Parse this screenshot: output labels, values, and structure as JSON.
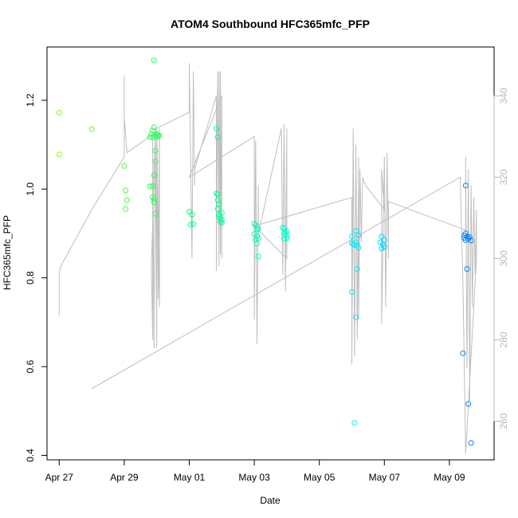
{
  "chart_data": {
    "type": "scatter",
    "title": "ATOM4 Southbound HFC365mfc_PFP",
    "xlabel": "Date",
    "ylabel": "HFC365mfc_PFP",
    "xlim": [
      "2016-04-26T15:00",
      "2016-05-10T09:00"
    ],
    "ylim": [
      0.39,
      1.32
    ],
    "y2lim": [
      250.5,
      352
    ],
    "x_ticks": [
      {
        "date": "2016-04-27",
        "label": "Apr 27"
      },
      {
        "date": "2016-04-29",
        "label": "Apr 29"
      },
      {
        "date": "2016-05-01",
        "label": "May 01"
      },
      {
        "date": "2016-05-03",
        "label": "May 03"
      },
      {
        "date": "2016-05-05",
        "label": "May 05"
      },
      {
        "date": "2016-05-07",
        "label": "May 07"
      },
      {
        "date": "2016-05-09",
        "label": "May 09"
      }
    ],
    "y_ticks": [
      0.4,
      0.6,
      0.8,
      1.0,
      1.2
    ],
    "y_tick_labels": [
      "0.4",
      "0.6",
      "0.8",
      "1.0",
      "1.2"
    ],
    "y2_ticks": [
      260,
      280,
      300,
      320,
      340
    ],
    "y2_tick_labels": [
      "260",
      "280",
      "300",
      "320",
      "340"
    ],
    "grid": false,
    "legend": "none",
    "colors": {
      "line": "#bebebe",
      "frame": "#000000",
      "right_axis": "#b8b8b8",
      "point_gradient": [
        "#80ff00",
        "#00ff80",
        "#00ffff",
        "#0080ff"
      ]
    },
    "series": [
      {
        "type": "line",
        "axis": "right",
        "points": [
          [
            "2016-04-27T00:00",
            286
          ],
          [
            "2016-04-27T00:00",
            296
          ],
          [
            "2016-04-27T01:00",
            298
          ],
          [
            "2016-04-28T00:00",
            312
          ],
          [
            "2016-04-29T00:00",
            325
          ],
          [
            "2016-04-29T00:00",
            345
          ],
          [
            "2016-04-29T00:00",
            335
          ],
          [
            "2016-04-29T02:00",
            326
          ],
          [
            "2016-04-29T23:00",
            331
          ],
          [
            "2016-04-29T20:00",
            298
          ],
          [
            "2016-04-29T21:00",
            280
          ],
          [
            "2016-04-29T21:00",
            330
          ],
          [
            "2016-04-29T22:00",
            278
          ],
          [
            "2016-04-29T23:00",
            332
          ],
          [
            "2016-04-30T00:00",
            278
          ],
          [
            "2016-04-30T00:00",
            330
          ],
          [
            "2016-04-30T01:00",
            290
          ],
          [
            "2016-04-30T02:00",
            332
          ],
          [
            "2016-04-30T02:00",
            288
          ],
          [
            "2016-04-30T00:00",
            332
          ],
          [
            "2016-05-01T00:00",
            336
          ],
          [
            "2016-05-01T00:00",
            348
          ],
          [
            "2016-05-01T02:00",
            300
          ],
          [
            "2016-05-01T03:00",
            346
          ],
          [
            "2016-05-01T04:00",
            318
          ],
          [
            "2016-05-01T04:00",
            322
          ],
          [
            "2016-05-01T20:00",
            340
          ],
          [
            "2016-05-01T20:00",
            297
          ],
          [
            "2016-05-01T21:00",
            346
          ],
          [
            "2016-05-01T22:00",
            298
          ],
          [
            "2016-05-01T22:00",
            346
          ],
          [
            "2016-05-01T23:00",
            301
          ],
          [
            "2016-05-01T23:00",
            346
          ],
          [
            "2016-05-02T00:00",
            300
          ],
          [
            "2016-05-02T00:00",
            340
          ],
          [
            "2016-05-01T00:00",
            320
          ],
          [
            "2016-05-03T00:00",
            330
          ],
          [
            "2016-05-03T00:00",
            285
          ],
          [
            "2016-05-03T01:00",
            329
          ],
          [
            "2016-05-03T02:00",
            279
          ],
          [
            "2016-05-03T03:00",
            318
          ],
          [
            "2016-05-03T03:00",
            306
          ],
          [
            "2016-05-03T20:00",
            332
          ],
          [
            "2016-05-03T21:00",
            296
          ],
          [
            "2016-05-03T22:00",
            333
          ],
          [
            "2016-05-03T23:00",
            292
          ],
          [
            "2016-05-04T00:00",
            332
          ],
          [
            "2016-05-04T00:00",
            300
          ],
          [
            "2016-05-03T00:00",
            308
          ],
          [
            "2016-05-06T00:00",
            315
          ],
          [
            "2016-05-06T00:00",
            274
          ],
          [
            "2016-05-06T01:00",
            332
          ],
          [
            "2016-05-06T02:00",
            276
          ],
          [
            "2016-05-06T03:00",
            328
          ],
          [
            "2016-05-06T04:00",
            280
          ],
          [
            "2016-05-06T05:00",
            325
          ],
          [
            "2016-05-06T05:00",
            285
          ],
          [
            "2016-05-06T06:00",
            322
          ],
          [
            "2016-05-06T07:00",
            304
          ],
          [
            "2016-05-06T08:00",
            320
          ],
          [
            "2016-05-06T10:00",
            318
          ],
          [
            "2016-05-07T00:00",
            312
          ],
          [
            "2016-05-06T22:00",
            322
          ],
          [
            "2016-05-06T22:00",
            284
          ],
          [
            "2016-05-07T00:00",
            325
          ],
          [
            "2016-05-07T01:00",
            288
          ],
          [
            "2016-05-07T02:00",
            326
          ],
          [
            "2016-05-07T03:00",
            300
          ],
          [
            "2016-05-07T03:00",
            314
          ],
          [
            "2016-05-09T12:00",
            307
          ],
          [
            "2016-05-09T12:00",
            325
          ],
          [
            "2016-05-09T13:00",
            273
          ],
          [
            "2016-05-09T14:00",
            322
          ],
          [
            "2016-05-09T15:00",
            265
          ],
          [
            "2016-05-09T16:00",
            318
          ],
          [
            "2016-05-09T17:00",
            288
          ],
          [
            "2016-05-09T18:00",
            315
          ],
          [
            "2016-05-09T19:00",
            296
          ],
          [
            "2016-05-09T20:00",
            312
          ],
          [
            "2016-05-09T20:00",
            300
          ],
          [
            "2016-05-09T12:00",
            252
          ],
          [
            "2016-05-09T10:00",
            294
          ],
          [
            "2016-05-09T08:00",
            320
          ],
          [
            "2016-04-28T00:00",
            268
          ]
        ]
      },
      {
        "type": "points",
        "axis": "left",
        "marker": "open-circle",
        "points": [
          [
            "2016-04-27T00:00",
            1.172
          ],
          [
            "2016-04-27T00:00",
            1.078
          ],
          [
            "2016-04-28T00:00",
            1.135
          ],
          [
            "2016-04-29T00:00",
            1.052
          ],
          [
            "2016-04-29T01:00",
            0.997
          ],
          [
            "2016-04-29T02:00",
            0.975
          ],
          [
            "2016-04-29T01:00",
            0.955
          ],
          [
            "2016-04-29T19:00",
            1.117
          ],
          [
            "2016-04-29T20:00",
            1.124
          ],
          [
            "2016-04-29T21:00",
            1.132
          ],
          [
            "2016-04-29T21:00",
            1.117
          ],
          [
            "2016-04-29T22:00",
            1.139
          ],
          [
            "2016-04-29T23:00",
            1.12
          ],
          [
            "2016-04-30T00:00",
            1.124
          ],
          [
            "2016-04-30T00:00",
            1.117
          ],
          [
            "2016-04-30T01:00",
            1.121
          ],
          [
            "2016-04-30T02:00",
            1.12
          ],
          [
            "2016-04-29T22:00",
            1.29
          ],
          [
            "2016-04-29T23:00",
            1.086
          ],
          [
            "2016-04-29T23:00",
            1.062
          ],
          [
            "2016-04-29T22:00",
            1.031
          ],
          [
            "2016-04-29T19:00",
            1.006
          ],
          [
            "2016-04-29T21:00",
            1.007
          ],
          [
            "2016-04-29T21:00",
            0.982
          ],
          [
            "2016-04-29T22:00",
            0.977
          ],
          [
            "2016-04-29T22:00",
            0.97
          ],
          [
            "2016-04-29T23:00",
            0.944
          ],
          [
            "2016-05-01T00:00",
            0.949
          ],
          [
            "2016-05-01T02:00",
            0.942
          ],
          [
            "2016-05-01T01:00",
            0.92
          ],
          [
            "2016-05-01T03:00",
            0.921
          ],
          [
            "2016-05-01T20:00",
            1.136
          ],
          [
            "2016-05-01T21:00",
            1.117
          ],
          [
            "2016-05-01T20:00",
            0.99
          ],
          [
            "2016-05-01T21:00",
            0.988
          ],
          [
            "2016-05-01T21:00",
            0.975
          ],
          [
            "2016-05-01T22:00",
            0.966
          ],
          [
            "2016-05-01T21:00",
            0.955
          ],
          [
            "2016-05-01T22:00",
            0.943
          ],
          [
            "2016-05-02T00:00",
            0.946
          ],
          [
            "2016-05-01T22:00",
            0.938
          ],
          [
            "2016-05-01T23:00",
            0.934
          ],
          [
            "2016-05-02T00:00",
            0.931
          ],
          [
            "2016-05-01T23:00",
            0.927
          ],
          [
            "2016-05-02T00:00",
            0.924
          ],
          [
            "2016-05-03T00:00",
            0.922
          ],
          [
            "2016-05-03T01:00",
            0.918
          ],
          [
            "2016-05-03T02:00",
            0.911
          ],
          [
            "2016-05-03T03:00",
            0.91
          ],
          [
            "2016-05-03T00:00",
            0.899
          ],
          [
            "2016-05-03T02:00",
            0.894
          ],
          [
            "2016-05-03T01:00",
            0.886
          ],
          [
            "2016-05-03T03:00",
            0.889
          ],
          [
            "2016-05-03T02:00",
            0.877
          ],
          [
            "2016-05-03T03:00",
            0.848
          ],
          [
            "2016-05-03T21:00",
            0.913
          ],
          [
            "2016-05-03T22:00",
            0.91
          ],
          [
            "2016-05-04T00:00",
            0.905
          ],
          [
            "2016-05-03T22:00",
            0.899
          ],
          [
            "2016-05-03T23:00",
            0.902
          ],
          [
            "2016-05-04T00:00",
            0.896
          ],
          [
            "2016-05-03T22:00",
            0.888
          ],
          [
            "2016-05-04T00:00",
            0.889
          ],
          [
            "2016-05-06T00:00",
            0.893
          ],
          [
            "2016-05-06T03:00",
            0.906
          ],
          [
            "2016-05-06T05:00",
            0.896
          ],
          [
            "2016-05-06T00:00",
            0.878
          ],
          [
            "2016-05-06T02:00",
            0.874
          ],
          [
            "2016-05-06T03:00",
            0.88
          ],
          [
            "2016-05-06T04:00",
            0.873
          ],
          [
            "2016-05-06T05:00",
            0.868
          ],
          [
            "2016-05-06T01:00",
            0.876
          ],
          [
            "2016-05-06T04:00",
            0.82
          ],
          [
            "2016-05-06T00:00",
            0.768
          ],
          [
            "2016-05-06T03:00",
            0.711
          ],
          [
            "2016-05-06T02:00",
            0.473
          ],
          [
            "2016-05-06T21:00",
            0.88
          ],
          [
            "2016-05-06T22:00",
            0.893
          ],
          [
            "2016-05-07T00:00",
            0.885
          ],
          [
            "2016-05-06T23:00",
            0.876
          ],
          [
            "2016-05-07T00:00",
            0.87
          ],
          [
            "2016-05-06T22:00",
            0.866
          ],
          [
            "2016-05-09T12:00",
            1.008
          ],
          [
            "2016-05-09T11:00",
            0.896
          ],
          [
            "2016-05-09T12:00",
            0.9
          ],
          [
            "2016-05-09T13:00",
            0.893
          ],
          [
            "2016-05-09T14:00",
            0.888
          ],
          [
            "2016-05-09T15:00",
            0.892
          ],
          [
            "2016-05-09T16:00",
            0.884
          ],
          [
            "2016-05-09T12:00",
            0.885
          ],
          [
            "2016-05-09T11:00",
            0.89
          ],
          [
            "2016-05-09T13:00",
            0.82
          ],
          [
            "2016-05-09T10:00",
            0.63
          ],
          [
            "2016-05-09T14:00",
            0.516
          ],
          [
            "2016-05-09T16:00",
            0.428
          ]
        ]
      }
    ]
  }
}
